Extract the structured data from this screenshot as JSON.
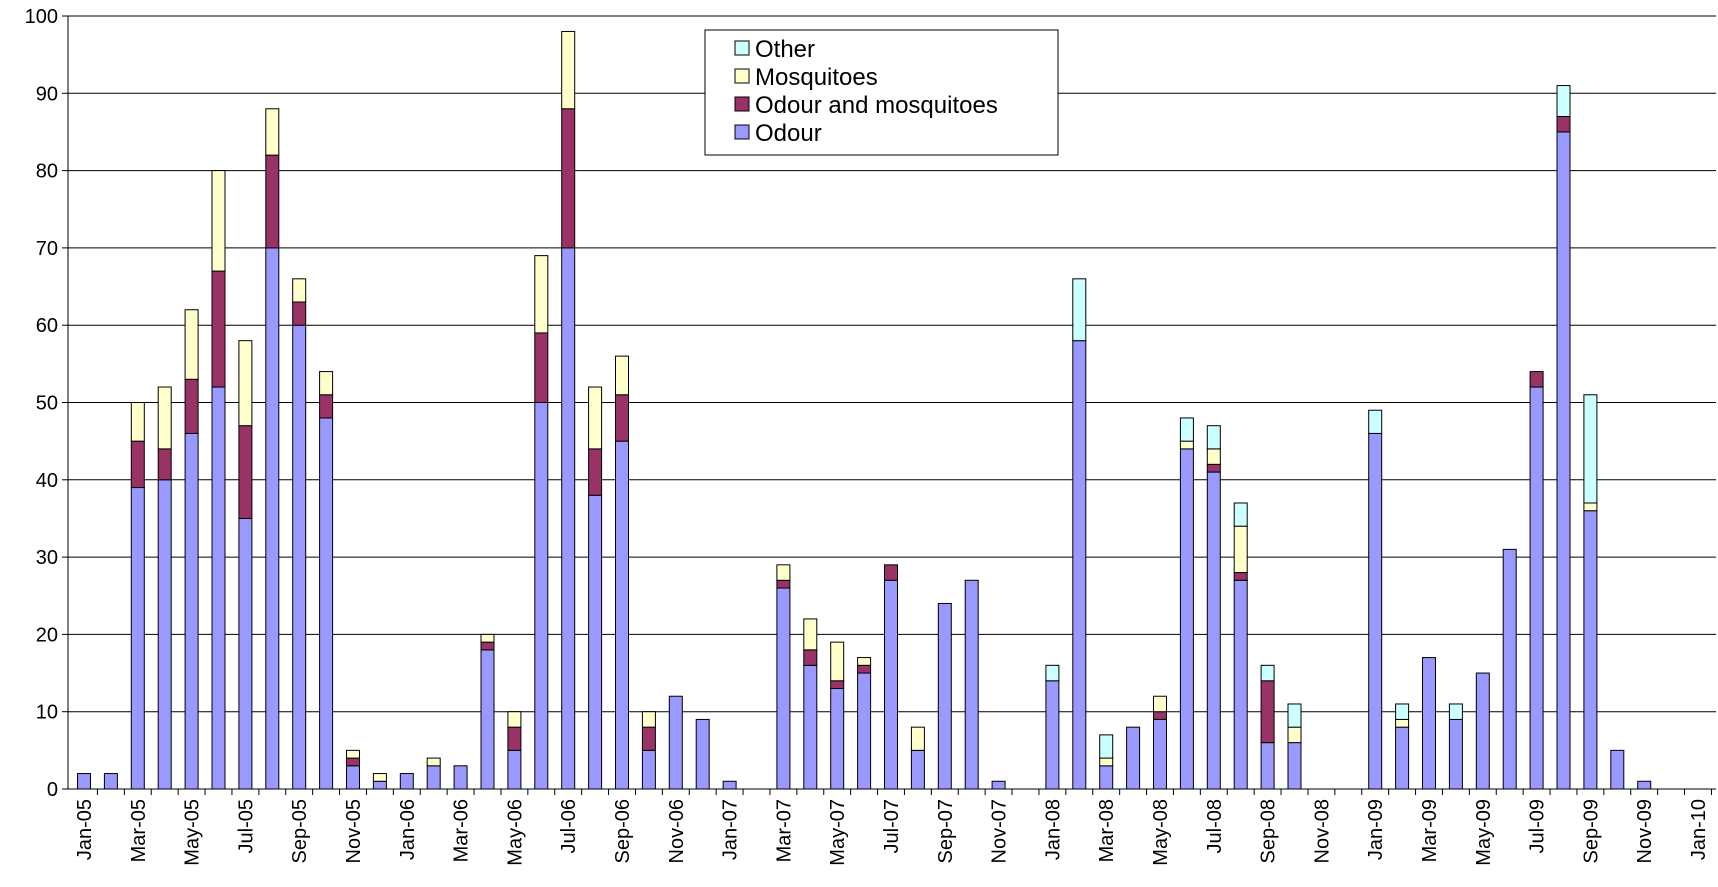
{
  "chart_data": {
    "type": "bar",
    "stacked": true,
    "title": "",
    "xlabel": "",
    "ylabel": "",
    "ylim": [
      0,
      100
    ],
    "y_ticks": [
      0,
      10,
      20,
      30,
      40,
      50,
      60,
      70,
      80,
      90,
      100
    ],
    "grid": "horizontal",
    "legend": {
      "placement": "top-center",
      "order": [
        "Other",
        "Mosquitoes",
        "Odour and mosquitoes",
        "Odour"
      ]
    },
    "colors": {
      "Odour": "#9999ff",
      "Odour and mosquitoes": "#993366",
      "Mosquitoes": "#ffffcc",
      "Other": "#ccffff"
    },
    "categories": [
      "Jan-05",
      "Feb-05",
      "Mar-05",
      "Apr-05",
      "May-05",
      "Jun-05",
      "Jul-05",
      "Aug-05",
      "Sep-05",
      "Oct-05",
      "Nov-05",
      "Dec-05",
      "Jan-06",
      "Feb-06",
      "Mar-06",
      "Apr-06",
      "May-06",
      "Jun-06",
      "Jul-06",
      "Aug-06",
      "Sep-06",
      "Oct-06",
      "Nov-06",
      "Dec-06",
      "Jan-07",
      "Feb-07",
      "Mar-07",
      "Apr-07",
      "May-07",
      "Jun-07",
      "Jul-07",
      "Aug-07",
      "Sep-07",
      "Oct-07",
      "Nov-07",
      "Dec-07",
      "Jan-08",
      "Feb-08",
      "Mar-08",
      "Apr-08",
      "May-08",
      "Jun-08",
      "Jul-08",
      "Aug-08",
      "Sep-08",
      "Oct-08",
      "Nov-08",
      "Dec-08",
      "Jan-09",
      "Feb-09",
      "Mar-09",
      "Apr-09",
      "May-09",
      "Jun-09",
      "Jul-09",
      "Aug-09",
      "Sep-09",
      "Oct-09",
      "Nov-09",
      "Dec-09",
      "Jan-10"
    ],
    "tick_labels": [
      "Jan-05",
      "Mar-05",
      "May-05",
      "Jul-05",
      "Sep-05",
      "Nov-05",
      "Jan-06",
      "Mar-06",
      "May-06",
      "Jul-06",
      "Sep-06",
      "Nov-06",
      "Jan-07",
      "Mar-07",
      "May-07",
      "Jul-07",
      "Sep-07",
      "Nov-07",
      "Jan-08",
      "Mar-08",
      "May-08",
      "Jul-08",
      "Sep-08",
      "Nov-08",
      "Jan-09",
      "Mar-09",
      "May-09",
      "Jul-09",
      "Sep-09",
      "Nov-09",
      "Jan-10"
    ],
    "series": [
      {
        "name": "Odour",
        "values": [
          2,
          2,
          39,
          40,
          46,
          52,
          35,
          70,
          60,
          48,
          3,
          1,
          2,
          3,
          3,
          18,
          5,
          50,
          70,
          38,
          45,
          5,
          12,
          9,
          1,
          0,
          26,
          16,
          13,
          15,
          27,
          5,
          24,
          27,
          1,
          0,
          14,
          58,
          3,
          8,
          9,
          44,
          41,
          27,
          6,
          6,
          0,
          0,
          46,
          8,
          17,
          9,
          15,
          31,
          52,
          85,
          36,
          5,
          1,
          0,
          0
        ]
      },
      {
        "name": "Odour and mosquitoes",
        "values": [
          0,
          0,
          6,
          4,
          7,
          15,
          12,
          12,
          3,
          3,
          1,
          0,
          0,
          0,
          0,
          1,
          3,
          9,
          18,
          6,
          6,
          3,
          0,
          0,
          0,
          0,
          1,
          2,
          1,
          1,
          2,
          0,
          0,
          0,
          0,
          0,
          0,
          0,
          0,
          0,
          1,
          0,
          1,
          1,
          8,
          0,
          0,
          0,
          0,
          0,
          0,
          0,
          0,
          0,
          2,
          2,
          0,
          0,
          0,
          0,
          0
        ]
      },
      {
        "name": "Mosquitoes",
        "values": [
          0,
          0,
          5,
          8,
          9,
          13,
          11,
          6,
          3,
          3,
          1,
          1,
          0,
          1,
          0,
          1,
          2,
          10,
          10,
          8,
          5,
          2,
          0,
          0,
          0,
          0,
          2,
          4,
          5,
          1,
          0,
          3,
          0,
          0,
          0,
          0,
          0,
          0,
          1,
          0,
          2,
          1,
          2,
          6,
          0,
          2,
          0,
          0,
          0,
          1,
          0,
          0,
          0,
          0,
          0,
          0,
          1,
          0,
          0,
          0,
          0
        ]
      },
      {
        "name": "Other",
        "values": [
          0,
          0,
          0,
          0,
          0,
          0,
          0,
          0,
          0,
          0,
          0,
          0,
          0,
          0,
          0,
          0,
          0,
          0,
          0,
          0,
          0,
          0,
          0,
          0,
          0,
          0,
          0,
          0,
          0,
          0,
          0,
          0,
          0,
          0,
          0,
          0,
          2,
          8,
          3,
          0,
          0,
          3,
          3,
          3,
          2,
          3,
          0,
          0,
          3,
          2,
          0,
          2,
          0,
          0,
          0,
          4,
          14,
          0,
          0,
          0,
          0
        ]
      }
    ]
  }
}
